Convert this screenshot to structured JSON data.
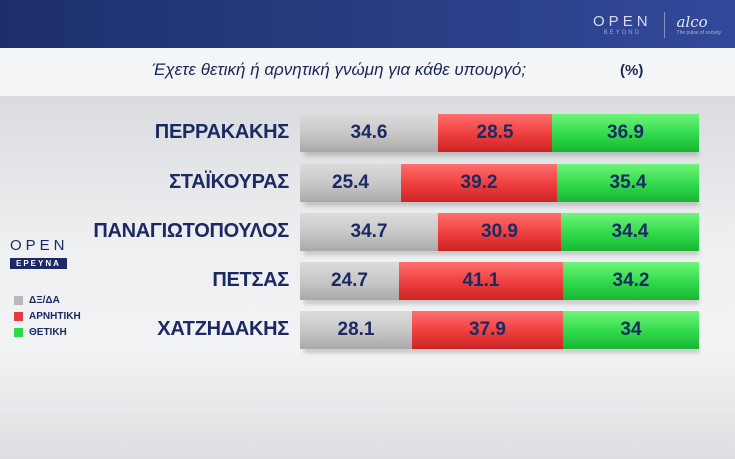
{
  "header": {
    "logo_main": "OPEN",
    "logo_sub": "BEYOND",
    "partner_main": "alco",
    "partner_sub": "The pulse of society"
  },
  "title": {
    "question": "Έχετε θετική ή αρνητική γνώμη για κάθε υπουργό;",
    "unit": "(%)"
  },
  "side": {
    "logo_main": "OPEN",
    "logo_sub": "ΕΡΕΥΝΑ"
  },
  "legend": [
    {
      "label": "ΔΞ/ΔΑ",
      "color": "#b9b9b9"
    },
    {
      "label": "ΑΡΝΗΤΙΚΗ",
      "color": "#e53b3b"
    },
    {
      "label": "ΘΕΤΙΚΗ",
      "color": "#2fd94a"
    }
  ],
  "chart_data": {
    "type": "bar",
    "stacked": true,
    "orientation": "horizontal",
    "title": "Έχετε θετική ή αρνητική γνώμη για κάθε υπουργό;",
    "unit": "(%)",
    "categories": [
      "ΠΕΡΡΑΚΑΚΗΣ",
      "ΣΤΑΪΚΟΥΡΑΣ",
      "ΠΑΝΑΓΙΩΤΟΠΟΥΛΟΣ",
      "ΠΕΤΣΑΣ",
      "ΧΑΤΖΗΔΑΚΗΣ"
    ],
    "series": [
      {
        "name": "ΔΞ/ΔΑ",
        "values": [
          34.6,
          25.4,
          34.7,
          24.7,
          28.1
        ]
      },
      {
        "name": "ΑΡΝΗΤΙΚΗ",
        "values": [
          28.5,
          39.2,
          30.9,
          41.1,
          37.9
        ]
      },
      {
        "name": "ΘΕΤΙΚΗ",
        "values": [
          36.9,
          35.4,
          34.4,
          34.2,
          34
        ]
      }
    ],
    "labels": [
      [
        "34.6",
        "28.5",
        "36.9"
      ],
      [
        "25.4",
        "39.2",
        "35.4"
      ],
      [
        "34.7",
        "30.9",
        "34.4"
      ],
      [
        "24.7",
        "41.1",
        "34.2"
      ],
      [
        "28.1",
        "37.9",
        "34"
      ]
    ],
    "legend": "left"
  }
}
